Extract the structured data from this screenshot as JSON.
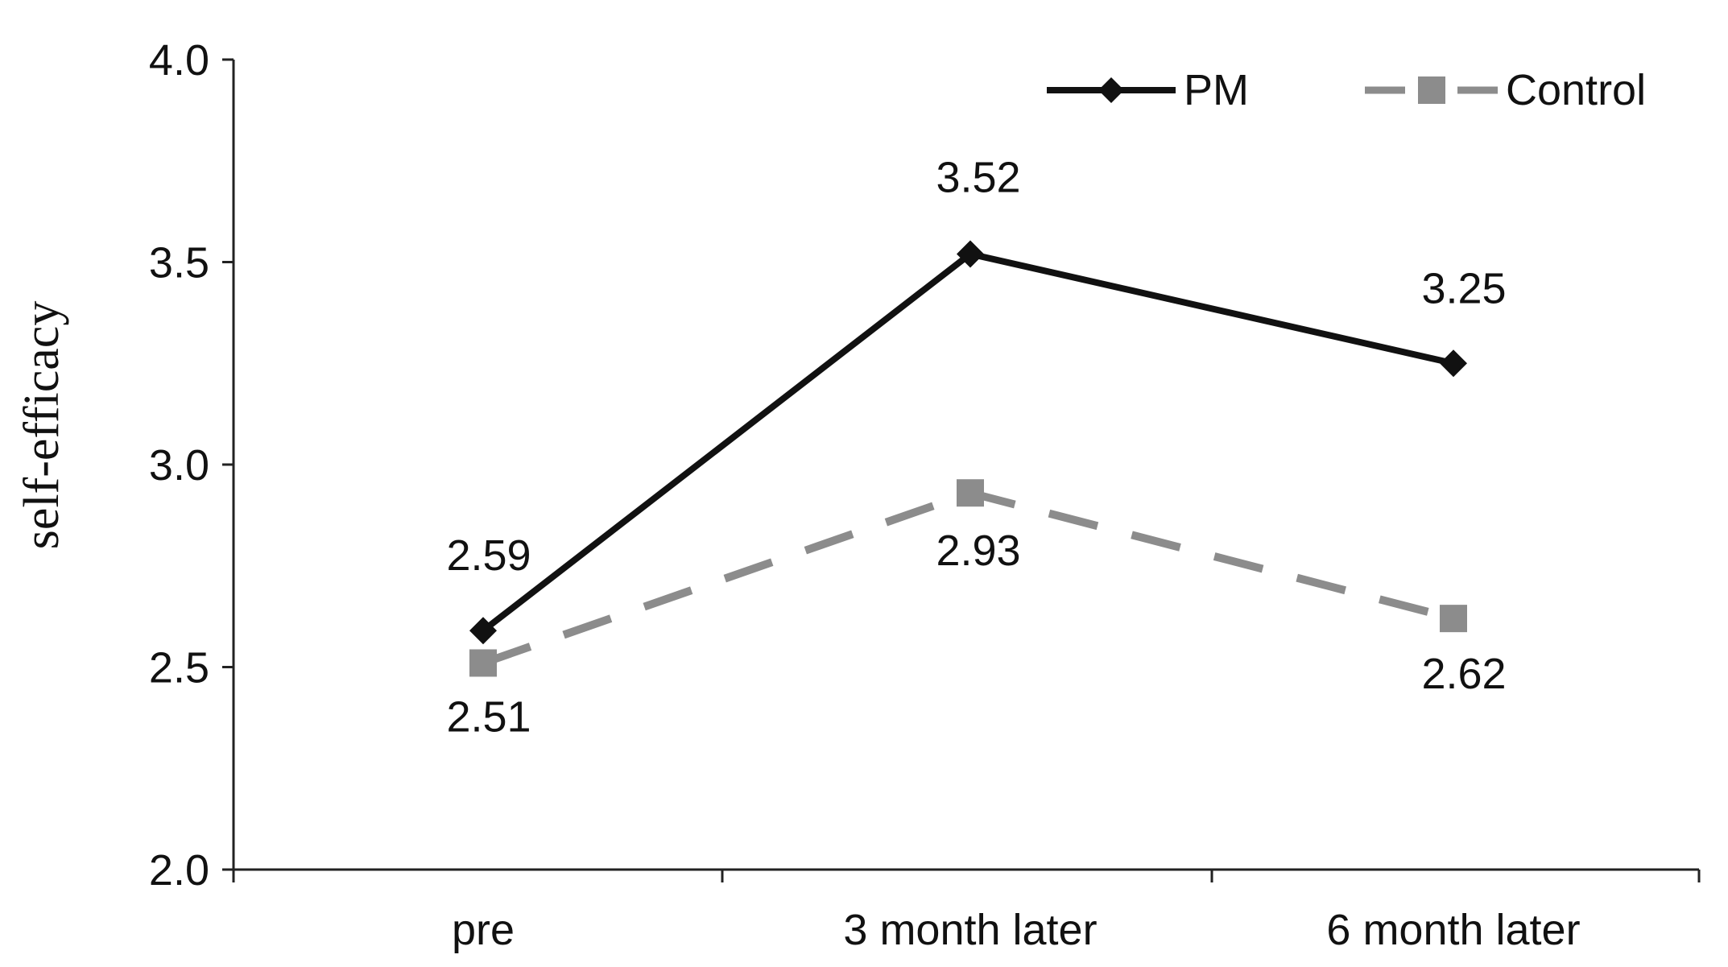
{
  "chart_data": {
    "type": "line",
    "title": "",
    "xlabel": "",
    "ylabel": "self-efficacy",
    "categories": [
      "pre",
      "3 month later",
      "6 month later"
    ],
    "ylim": [
      2.0,
      4.0
    ],
    "yticks": [
      "2.0",
      "2.5",
      "3.0",
      "3.5",
      "4.0"
    ],
    "grid": false,
    "legend_position": "top-right",
    "series": [
      {
        "name": "PM",
        "values": [
          2.59,
          3.52,
          3.25
        ],
        "labels": [
          "2.59",
          "3.52",
          "3.25"
        ],
        "color": "#111111",
        "line_style": "solid",
        "marker": "diamond"
      },
      {
        "name": "Control",
        "values": [
          2.51,
          2.93,
          2.62
        ],
        "labels": [
          "2.51",
          "2.93",
          "2.62"
        ],
        "color": "#8c8c8c",
        "line_style": "dashed",
        "marker": "square"
      }
    ]
  }
}
